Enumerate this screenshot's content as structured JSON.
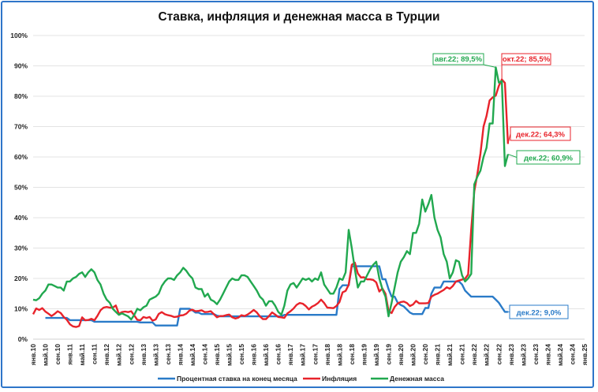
{
  "chart_data": {
    "type": "line",
    "title": "Ставка, инфляция и денежная масса в Турции",
    "xlabel": "",
    "ylabel": "",
    "ylim": [
      0,
      100
    ],
    "y_ticks": [
      "0%",
      "10%",
      "20%",
      "30%",
      "40%",
      "50%",
      "60%",
      "70%",
      "80%",
      "90%",
      "100%"
    ],
    "x_range": [
      "янв.10",
      "янв.25"
    ],
    "x_tick_labels": [
      "янв.10",
      "май.10",
      "сен.10",
      "янв.11",
      "май.11",
      "сен.11",
      "янв.12",
      "май.12",
      "сен.12",
      "янв.13",
      "май.13",
      "сен.13",
      "янв.14",
      "май.14",
      "сен.14",
      "янв.15",
      "май.15",
      "сен.15",
      "янв.16",
      "май.16",
      "сен.16",
      "янв.17",
      "май.17",
      "сен.17",
      "янв.18",
      "май.18",
      "сен.18",
      "янв.19",
      "май.19",
      "сен.19",
      "янв.20",
      "май.20",
      "сен.20",
      "янв.21",
      "май.21",
      "сен.21",
      "янв.22",
      "май.22",
      "сен.22",
      "янв.23",
      "май.23",
      "сен.23",
      "янв.24",
      "май.24",
      "сен.24",
      "янв.25"
    ],
    "x_start": "янв.10",
    "x_step": "month",
    "grid": true,
    "legend_placement": "bottom",
    "series": [
      {
        "name": "Процентная ставка на конец месяца",
        "color": "#2a7bc8",
        "values": [
          null,
          null,
          null,
          null,
          7,
          7,
          7,
          7,
          7,
          7,
          7,
          7,
          6.25,
          6.25,
          6.25,
          6.25,
          6.25,
          6.25,
          6.25,
          6.25,
          5.75,
          5.75,
          5.75,
          5.75,
          5.75,
          5.75,
          5.75,
          5.75,
          5.75,
          5.75,
          5.75,
          5.75,
          5.75,
          5.75,
          5.75,
          5.5,
          5.5,
          5.5,
          5.5,
          5.5,
          4.5,
          4.5,
          4.5,
          4.5,
          4.5,
          4.5,
          4.5,
          4.5,
          10,
          10,
          10,
          10,
          9.5,
          8.75,
          8.75,
          8.25,
          8.25,
          8.25,
          8.25,
          8.25,
          7.75,
          7.5,
          7.5,
          7.5,
          7.5,
          7.5,
          7.5,
          7.5,
          7.5,
          7.5,
          7.5,
          7.5,
          7.5,
          7.5,
          7.5,
          7.5,
          7.5,
          7.5,
          7.5,
          7.5,
          7.5,
          7.5,
          8,
          8,
          8,
          8,
          8,
          8,
          8,
          8,
          8,
          8,
          8,
          8,
          8,
          8,
          8,
          8,
          8,
          8,
          16.5,
          17.75,
          17.75,
          17.75,
          24,
          24,
          24,
          24,
          24,
          24,
          24,
          24,
          24,
          24,
          19.75,
          19.75,
          16.5,
          14,
          14,
          12,
          11.25,
          10.75,
          9.75,
          8.75,
          8.25,
          8.25,
          8.25,
          8.25,
          10.25,
          10.25,
          15,
          17,
          17,
          17,
          19,
          19,
          19,
          19,
          19,
          19,
          18,
          16,
          15,
          14,
          14,
          14,
          14,
          14,
          14,
          14,
          14,
          13,
          12,
          10.5,
          9,
          9
        ]
      },
      {
        "name": "Инфляция",
        "color": "#e8232b",
        "values": [
          8.2,
          10.1,
          9.6,
          10.2,
          9.1,
          8.4,
          7.6,
          8.3,
          9.2,
          8.6,
          7.3,
          6.4,
          4.9,
          4.2,
          4.0,
          4.3,
          7.2,
          6.2,
          6.3,
          6.7,
          6.2,
          7.7,
          9.5,
          10.4,
          10.6,
          10.4,
          10.4,
          11.1,
          8.3,
          8.9,
          9.1,
          8.9,
          9.2,
          7.8,
          6.4,
          6.2,
          7.3,
          7.0,
          7.3,
          6.1,
          6.5,
          8.3,
          8.9,
          8.2,
          7.9,
          7.7,
          7.3,
          7.4,
          7.8,
          7.9,
          8.4,
          9.4,
          9.7,
          9.2,
          9.3,
          9.5,
          8.9,
          9.0,
          9.2,
          8.2,
          7.2,
          7.6,
          7.6,
          7.9,
          8.1,
          7.2,
          6.8,
          7.1,
          7.9,
          7.6,
          8.1,
          8.8,
          9.6,
          8.8,
          7.5,
          6.6,
          6.6,
          7.6,
          8.8,
          8.1,
          7.3,
          7.2,
          7.0,
          8.5,
          9.2,
          10.1,
          11.3,
          11.9,
          11.7,
          10.9,
          9.8,
          10.7,
          11.2,
          11.9,
          13.0,
          11.9,
          10.4,
          10.3,
          10.2,
          10.9,
          12.2,
          15.4,
          15.9,
          17.9,
          24.5,
          25.2,
          21.6,
          20.3,
          20.4,
          19.7,
          19.7,
          19.5,
          18.7,
          15.7,
          16.7,
          15.0,
          9.3,
          8.6,
          10.6,
          11.8,
          12.2,
          12.4,
          11.9,
          10.9,
          11.4,
          12.6,
          11.8,
          11.8,
          11.8,
          11.9,
          14.0,
          14.6,
          15.0,
          15.6,
          16.2,
          17.1,
          16.6,
          17.5,
          19.0,
          19.3,
          19.6,
          19.9,
          21.3,
          36.1,
          48.7,
          54.4,
          61.1,
          70.0,
          73.5,
          78.6,
          79.6,
          80.2,
          83.4,
          85.5,
          84.4,
          64.3
        ]
      },
      {
        "name": "Денежная масса",
        "color": "#21a84f",
        "values": [
          13,
          12.8,
          13.5,
          15,
          16,
          18,
          18,
          17.5,
          17,
          17,
          16,
          19,
          19,
          20,
          20.5,
          21.5,
          22,
          20.5,
          22,
          23,
          22,
          19.5,
          18,
          15,
          13,
          12,
          10,
          9,
          8,
          8.5,
          8,
          7.5,
          6.5,
          8,
          10,
          9.5,
          10.5,
          11,
          13,
          13.5,
          14,
          15,
          17.5,
          19,
          20,
          20,
          19.5,
          21,
          22,
          23.5,
          22.5,
          21,
          20,
          17,
          16.5,
          16.5,
          14,
          15,
          13,
          12.5,
          11.5,
          13,
          15,
          17,
          19,
          20,
          19.5,
          19.5,
          21,
          21,
          20.5,
          19,
          17.5,
          16,
          14,
          13,
          11,
          12.5,
          12.5,
          11,
          9,
          8,
          11,
          16,
          18,
          18.5,
          17,
          18.5,
          20,
          19.5,
          20,
          19,
          20,
          19.5,
          22,
          18,
          16.5,
          15,
          15,
          17,
          20,
          19.5,
          22,
          36,
          30,
          23,
          17,
          19,
          19,
          21,
          23,
          24.5,
          25.5,
          20,
          16.5,
          14,
          7.5,
          12,
          17,
          22,
          25.5,
          27,
          29,
          28,
          35,
          35,
          38,
          46,
          42,
          44.5,
          47.5,
          40,
          36,
          33.5,
          28,
          25.5,
          20,
          22,
          26,
          25.5,
          21,
          19,
          20,
          21.5,
          51,
          53.5,
          55.5,
          60,
          63,
          71,
          71,
          89.5,
          84.5,
          85,
          57,
          60.9
        ]
      }
    ],
    "annotations": [
      {
        "text": "авг.22; 89,5%",
        "series": "Денежная масса",
        "x": "авг.22",
        "y": 89.5,
        "color": "#21a84f"
      },
      {
        "text": "окт.22; 85,5%",
        "series": "Инфляция",
        "x": "окт.22",
        "y": 85.5,
        "color": "#e8232b"
      },
      {
        "text": "дек.22; 64,3%",
        "series": "Инфляция",
        "x": "дек.22",
        "y": 64.3,
        "color": "#e8232b"
      },
      {
        "text": "дек.22; 60,9%",
        "series": "Денежная масса",
        "x": "дек.22",
        "y": 60.9,
        "color": "#21a84f"
      },
      {
        "text": "дек.22; 9,0%",
        "series": "Процентная ставка на конец месяца",
        "x": "дек.22",
        "y": 9.0,
        "color": "#2a7bc8"
      }
    ]
  }
}
